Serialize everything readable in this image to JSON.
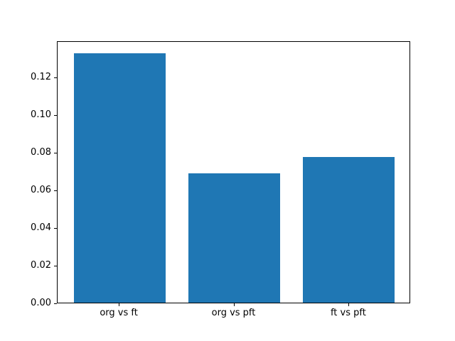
{
  "chart_data": {
    "type": "bar",
    "categories": [
      "org vs ft",
      "org vs pft",
      "ft vs pft"
    ],
    "values": [
      0.1326,
      0.0687,
      0.0772
    ],
    "title": "",
    "xlabel": "",
    "ylabel": "",
    "ylim": [
      0,
      0.1392
    ],
    "xlim": [
      -0.54,
      2.54
    ],
    "yticks": [
      0.0,
      0.02,
      0.04,
      0.06,
      0.08,
      0.1,
      0.12
    ],
    "ytick_decimals": 2,
    "bar_width": 0.8,
    "bar_color": "#1f77b4",
    "axes_edge_color": "#000000",
    "background_color": "#ffffff",
    "grid": false,
    "legend": false
  }
}
